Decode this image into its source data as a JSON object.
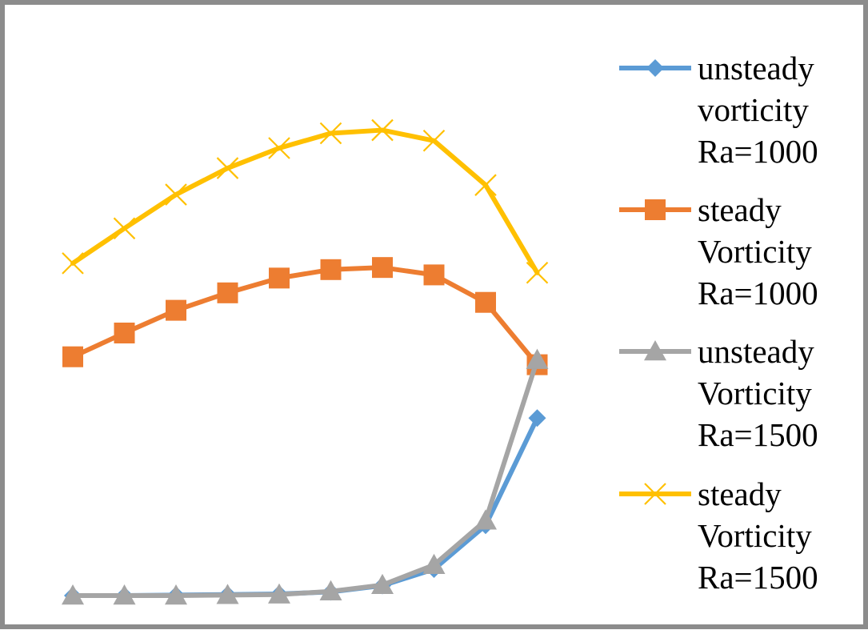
{
  "chart_data": {
    "type": "line",
    "title": "",
    "xlabel": "",
    "ylabel": "",
    "x": [
      1,
      2,
      3,
      4,
      5,
      6,
      7,
      8,
      9,
      10
    ],
    "ylim": [
      0,
      100
    ],
    "grid": false,
    "legend_position": "right",
    "series": [
      {
        "name_lines": [
          "unsteady",
          "vorticity",
          "Ra=1000"
        ],
        "color": "#5b9bd5",
        "marker": "diamond",
        "values": [
          0.3,
          0.3,
          0.4,
          0.5,
          0.6,
          1.0,
          2.2,
          5.3,
          13.6,
          33.9
        ]
      },
      {
        "name_lines": [
          "steady",
          "Vorticity",
          "Ra=1000"
        ],
        "color": "#ed7d31",
        "marker": "square",
        "values": [
          45.5,
          50.0,
          54.3,
          57.6,
          60.4,
          62.0,
          62.4,
          61.0,
          55.8,
          44.0
        ]
      },
      {
        "name_lines": [
          "unsteady",
          "Vorticity",
          "Ra=1500"
        ],
        "color": "#a5a5a5",
        "marker": "triangle",
        "values": [
          0.3,
          0.3,
          0.3,
          0.4,
          0.5,
          1.1,
          2.3,
          6.1,
          14.5,
          44.9
        ]
      },
      {
        "name_lines": [
          "steady",
          "Vorticity",
          "Ra=1500"
        ],
        "color": "#ffc000",
        "marker": "x",
        "values": [
          63.2,
          69.8,
          76.2,
          81.2,
          85.0,
          87.8,
          88.4,
          86.4,
          78.0,
          61.4
        ]
      }
    ]
  }
}
